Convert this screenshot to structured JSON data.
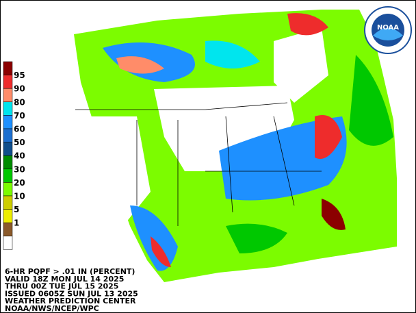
{
  "legend": {
    "colors": [
      "#8b0000",
      "#ee2c2c",
      "#ff8c69",
      "#00e5ee",
      "#1e90ff",
      "#1c6fd0",
      "#104e8b",
      "#008b00",
      "#00c800",
      "#7cfc00",
      "#cdcd00",
      "#eeee00",
      "#8b5a2b",
      "#ffffff"
    ],
    "labels": [
      95,
      90,
      80,
      70,
      60,
      50,
      40,
      30,
      20,
      10,
      5,
      1
    ]
  },
  "logo": "NOAA",
  "caption": [
    "6-HR PQPF > .01 IN (PERCENT)",
    "VALID 18Z MON JUL 14 2025",
    "THRU 00Z TUE JUL 15 2025",
    "ISSUED 0605Z SUN JUL 13 2025",
    "WEATHER PREDICTION CENTER",
    "NOAA/NWS/NCEP/WPC"
  ]
}
